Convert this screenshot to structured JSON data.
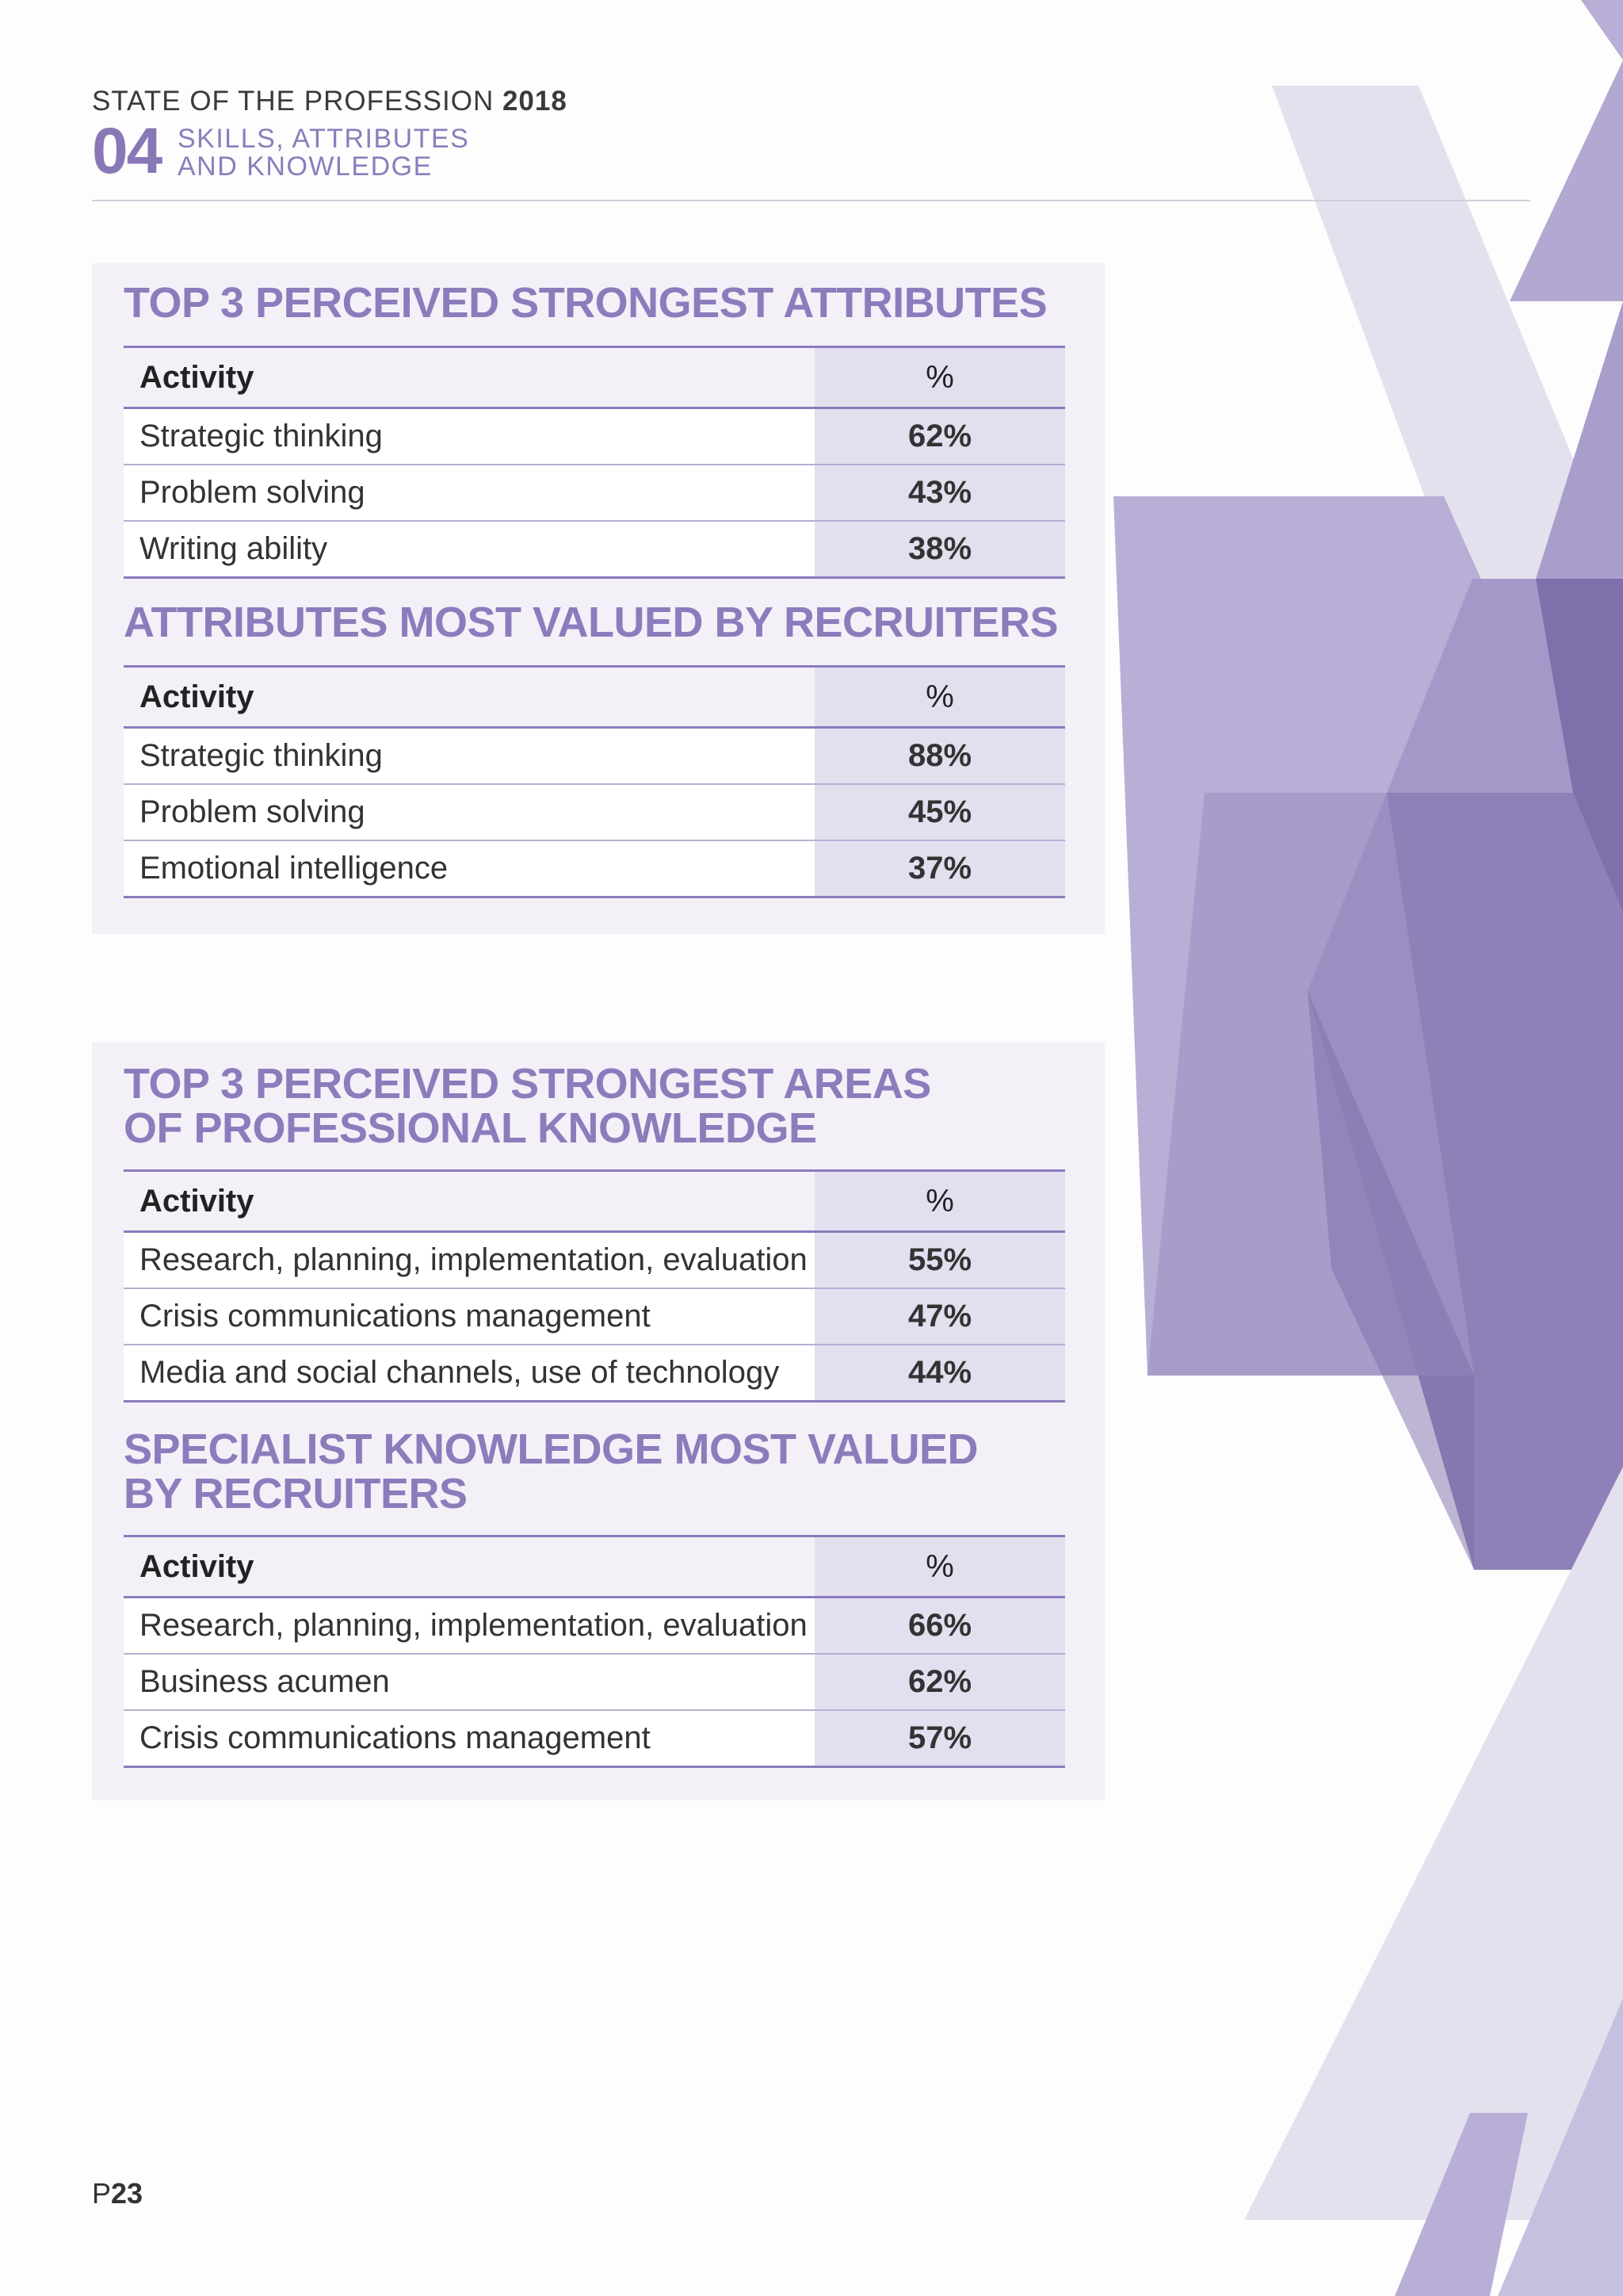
{
  "header": {
    "report_title": "STATE OF THE PROFESSION",
    "report_year": "2018",
    "section_number": "04",
    "section_title_line1": "SKILLS, ATTRIBUTES",
    "section_title_line2": "AND KNOWLEDGE"
  },
  "tables": [
    {
      "title": "TOP 3 PERCEIVED STRONGEST ATTRIBUTES",
      "col_activity": "Activity",
      "col_percent": "%",
      "rows": [
        {
          "activity": "Strategic thinking",
          "value": "62%"
        },
        {
          "activity": "Problem solving",
          "value": "43%"
        },
        {
          "activity": "Writing ability",
          "value": "38%"
        }
      ]
    },
    {
      "title": "ATTRIBUTES MOST VALUED BY RECRUITERS",
      "col_activity": "Activity",
      "col_percent": "%",
      "rows": [
        {
          "activity": "Strategic thinking",
          "value": "88%"
        },
        {
          "activity": "Problem solving",
          "value": "45%"
        },
        {
          "activity": "Emotional intelligence",
          "value": "37%"
        }
      ]
    },
    {
      "title_line1": "TOP 3 PERCEIVED STRONGEST AREAS",
      "title_line2": "OF PROFESSIONAL KNOWLEDGE",
      "col_activity": "Activity",
      "col_percent": "%",
      "rows": [
        {
          "activity": "Research, planning, implementation, evaluation",
          "value": "55%"
        },
        {
          "activity": "Crisis communications management",
          "value": "47%"
        },
        {
          "activity": "Media and social channels, use of technology",
          "value": "44%"
        }
      ]
    },
    {
      "title_line1": "SPECIALIST KNOWLEDGE MOST VALUED",
      "title_line2": "BY RECRUITERS",
      "col_activity": "Activity",
      "col_percent": "%",
      "rows": [
        {
          "activity": "Research, planning, implementation, evaluation",
          "value": "66%"
        },
        {
          "activity": "Business acumen",
          "value": "62%"
        },
        {
          "activity": "Crisis communications management",
          "value": "57%"
        }
      ]
    }
  ],
  "footer": {
    "page_prefix": "P",
    "page_number": "23"
  },
  "colors": {
    "accent": "#8c7cbc",
    "panel_background": "#f3f0f8",
    "percent_column": "#e3dfef"
  }
}
